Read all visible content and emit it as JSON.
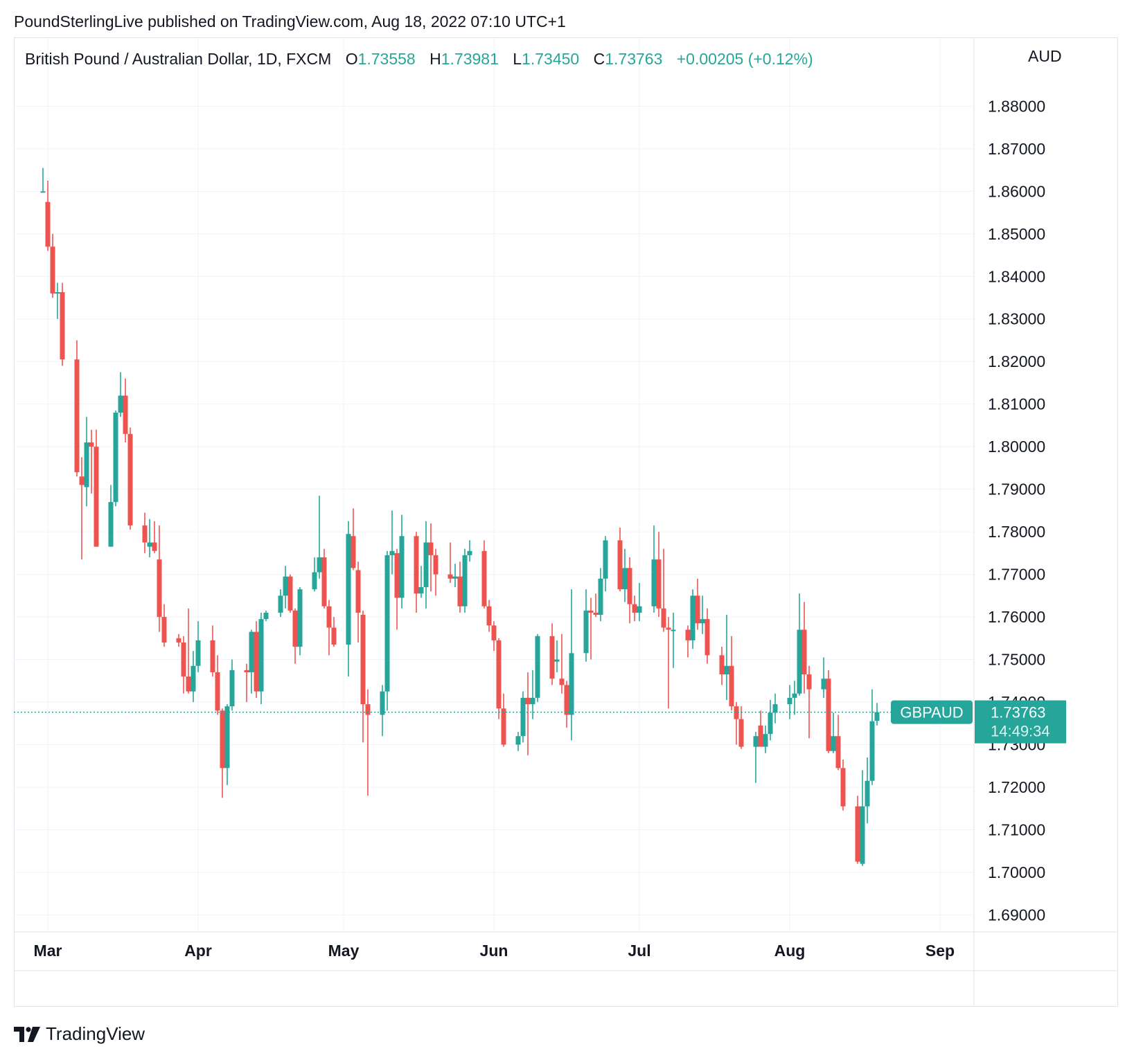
{
  "header": {
    "published": "PoundSterlingLive published on TradingView.com, Aug 18, 2022 07:10 UTC+1"
  },
  "legend": {
    "symbol": "British Pound / Australian Dollar, 1D, FXCM",
    "o_label": "O",
    "o_value": "1.73558",
    "h_label": "H",
    "h_value": "1.73981",
    "l_label": "L",
    "l_value": "1.73450",
    "c_label": "C",
    "c_value": "1.73763",
    "change": "+0.00205 (+0.12%)"
  },
  "axis": {
    "currency": "AUD"
  },
  "price_tag": {
    "symbol": "GBPAUD",
    "price": "1.73763",
    "countdown": "14:49:34"
  },
  "footer": {
    "brand": "TradingView"
  },
  "colors": {
    "up": "#26a69a",
    "down": "#ef5350",
    "grid": "#f0f3fa",
    "axis_text": "#131722"
  },
  "chart_data": {
    "type": "candlestick",
    "y_ticks": [
      "1.88000",
      "1.87000",
      "1.86000",
      "1.85000",
      "1.84000",
      "1.83000",
      "1.82000",
      "1.81000",
      "1.80000",
      "1.79000",
      "1.78000",
      "1.77000",
      "1.76000",
      "1.75000",
      "1.74000",
      "1.73000",
      "1.72000",
      "1.71000",
      "1.70000",
      "1.69000"
    ],
    "ylim": [
      1.686,
      1.896
    ],
    "x_ticks": [
      {
        "label": "Mar",
        "date": "2022-03-01"
      },
      {
        "label": "Apr",
        "date": "2022-04-01"
      },
      {
        "label": "May",
        "date": "2022-05-01"
      },
      {
        "label": "Jun",
        "date": "2022-06-01"
      },
      {
        "label": "Jul",
        "date": "2022-07-01"
      },
      {
        "label": "Aug",
        "date": "2022-08-01"
      },
      {
        "label": "Sep",
        "date": "2022-09-01"
      }
    ],
    "last_price": 1.73763,
    "candles": [
      {
        "d": "2022-02-28",
        "o": 1.86,
        "h": 1.8655,
        "l": 1.86,
        "c": 1.86
      },
      {
        "d": "2022-03-01",
        "o": 1.8575,
        "h": 1.8625,
        "l": 1.846,
        "c": 1.847
      },
      {
        "d": "2022-03-02",
        "o": 1.847,
        "h": 1.85,
        "l": 1.835,
        "c": 1.836
      },
      {
        "d": "2022-03-03",
        "o": 1.836,
        "h": 1.8385,
        "l": 1.83,
        "c": 1.8363
      },
      {
        "d": "2022-03-04",
        "o": 1.8363,
        "h": 1.8385,
        "l": 1.819,
        "c": 1.8205
      },
      {
        "d": "2022-03-07",
        "o": 1.8205,
        "h": 1.825,
        "l": 1.793,
        "c": 1.794
      },
      {
        "d": "2022-03-08",
        "o": 1.793,
        "h": 1.7975,
        "l": 1.7735,
        "c": 1.791
      },
      {
        "d": "2022-03-09",
        "o": 1.7905,
        "h": 1.807,
        "l": 1.786,
        "c": 1.801
      },
      {
        "d": "2022-03-10",
        "o": 1.801,
        "h": 1.804,
        "l": 1.789,
        "c": 1.8
      },
      {
        "d": "2022-03-11",
        "o": 1.8,
        "h": 1.804,
        "l": 1.7765,
        "c": 1.7765
      },
      {
        "d": "2022-03-14",
        "o": 1.7765,
        "h": 1.791,
        "l": 1.7765,
        "c": 1.787
      },
      {
        "d": "2022-03-15",
        "o": 1.787,
        "h": 1.8085,
        "l": 1.786,
        "c": 1.808
      },
      {
        "d": "2022-03-16",
        "o": 1.808,
        "h": 1.8175,
        "l": 1.807,
        "c": 1.812
      },
      {
        "d": "2022-03-17",
        "o": 1.812,
        "h": 1.816,
        "l": 1.801,
        "c": 1.803
      },
      {
        "d": "2022-03-18",
        "o": 1.803,
        "h": 1.8045,
        "l": 1.7805,
        "c": 1.7815
      },
      {
        "d": "2022-03-21",
        "o": 1.7815,
        "h": 1.7845,
        "l": 1.775,
        "c": 1.7775
      },
      {
        "d": "2022-03-22",
        "o": 1.7765,
        "h": 1.783,
        "l": 1.774,
        "c": 1.7775
      },
      {
        "d": "2022-03-23",
        "o": 1.7775,
        "h": 1.7825,
        "l": 1.775,
        "c": 1.7755
      },
      {
        "d": "2022-03-24",
        "o": 1.7735,
        "h": 1.7815,
        "l": 1.7565,
        "c": 1.76
      },
      {
        "d": "2022-03-25",
        "o": 1.76,
        "h": 1.763,
        "l": 1.753,
        "c": 1.754
      },
      {
        "d": "2022-03-28",
        "o": 1.755,
        "h": 1.756,
        "l": 1.753,
        "c": 1.754
      },
      {
        "d": "2022-03-29",
        "o": 1.754,
        "h": 1.7555,
        "l": 1.742,
        "c": 1.746
      },
      {
        "d": "2022-03-30",
        "o": 1.746,
        "h": 1.762,
        "l": 1.742,
        "c": 1.7425
      },
      {
        "d": "2022-03-31",
        "o": 1.7425,
        "h": 1.752,
        "l": 1.74,
        "c": 1.7485
      },
      {
        "d": "2022-04-01",
        "o": 1.7485,
        "h": 1.759,
        "l": 1.747,
        "c": 1.7545
      },
      {
        "d": "2022-04-04",
        "o": 1.7545,
        "h": 1.758,
        "l": 1.746,
        "c": 1.747
      },
      {
        "d": "2022-04-05",
        "o": 1.747,
        "h": 1.751,
        "l": 1.737,
        "c": 1.738
      },
      {
        "d": "2022-04-06",
        "o": 1.738,
        "h": 1.7385,
        "l": 1.7175,
        "c": 1.7245
      },
      {
        "d": "2022-04-07",
        "o": 1.7245,
        "h": 1.7395,
        "l": 1.7205,
        "c": 1.739
      },
      {
        "d": "2022-04-08",
        "o": 1.739,
        "h": 1.75,
        "l": 1.738,
        "c": 1.7475
      },
      {
        "d": "2022-04-11",
        "o": 1.7475,
        "h": 1.749,
        "l": 1.74,
        "c": 1.747
      },
      {
        "d": "2022-04-12",
        "o": 1.747,
        "h": 1.757,
        "l": 1.742,
        "c": 1.7565
      },
      {
        "d": "2022-04-13",
        "o": 1.7565,
        "h": 1.759,
        "l": 1.741,
        "c": 1.7425
      },
      {
        "d": "2022-04-14",
        "o": 1.7425,
        "h": 1.761,
        "l": 1.7395,
        "c": 1.7595
      },
      {
        "d": "2022-04-15",
        "o": 1.7595,
        "h": 1.7615,
        "l": 1.759,
        "c": 1.761
      },
      {
        "d": "2022-04-18",
        "o": 1.761,
        "h": 1.7665,
        "l": 1.76,
        "c": 1.765
      },
      {
        "d": "2022-04-19",
        "o": 1.765,
        "h": 1.772,
        "l": 1.762,
        "c": 1.7695
      },
      {
        "d": "2022-04-20",
        "o": 1.7695,
        "h": 1.77,
        "l": 1.761,
        "c": 1.7615
      },
      {
        "d": "2022-04-21",
        "o": 1.7615,
        "h": 1.762,
        "l": 1.749,
        "c": 1.753
      },
      {
        "d": "2022-04-22",
        "o": 1.753,
        "h": 1.767,
        "l": 1.751,
        "c": 1.7665
      },
      {
        "d": "2022-04-25",
        "o": 1.7665,
        "h": 1.774,
        "l": 1.766,
        "c": 1.7705
      },
      {
        "d": "2022-04-26",
        "o": 1.7705,
        "h": 1.7885,
        "l": 1.769,
        "c": 1.774
      },
      {
        "d": "2022-04-27",
        "o": 1.774,
        "h": 1.776,
        "l": 1.762,
        "c": 1.7625
      },
      {
        "d": "2022-04-28",
        "o": 1.7625,
        "h": 1.764,
        "l": 1.751,
        "c": 1.7575
      },
      {
        "d": "2022-04-29",
        "o": 1.7575,
        "h": 1.76,
        "l": 1.753,
        "c": 1.7535
      },
      {
        "d": "2022-05-02",
        "o": 1.7535,
        "h": 1.7825,
        "l": 1.746,
        "c": 1.7795
      },
      {
        "d": "2022-05-03",
        "o": 1.779,
        "h": 1.7855,
        "l": 1.771,
        "c": 1.7715
      },
      {
        "d": "2022-05-04",
        "o": 1.771,
        "h": 1.773,
        "l": 1.754,
        "c": 1.761
      },
      {
        "d": "2022-05-05",
        "o": 1.7605,
        "h": 1.7615,
        "l": 1.7305,
        "c": 1.7395
      },
      {
        "d": "2022-05-06",
        "o": 1.7395,
        "h": 1.743,
        "l": 1.718,
        "c": 1.737
      },
      {
        "d": "2022-05-09",
        "o": 1.737,
        "h": 1.744,
        "l": 1.732,
        "c": 1.7425
      },
      {
        "d": "2022-05-10",
        "o": 1.7425,
        "h": 1.7755,
        "l": 1.738,
        "c": 1.7745
      },
      {
        "d": "2022-05-11",
        "o": 1.7745,
        "h": 1.785,
        "l": 1.77,
        "c": 1.7755
      },
      {
        "d": "2022-05-12",
        "o": 1.775,
        "h": 1.776,
        "l": 1.757,
        "c": 1.7645
      },
      {
        "d": "2022-05-13",
        "o": 1.7645,
        "h": 1.784,
        "l": 1.762,
        "c": 1.779
      },
      {
        "d": "2022-05-16",
        "o": 1.779,
        "h": 1.78,
        "l": 1.761,
        "c": 1.7655
      },
      {
        "d": "2022-05-17",
        "o": 1.7655,
        "h": 1.772,
        "l": 1.7645,
        "c": 1.767
      },
      {
        "d": "2022-05-18",
        "o": 1.767,
        "h": 1.7825,
        "l": 1.762,
        "c": 1.7775
      },
      {
        "d": "2022-05-19",
        "o": 1.7775,
        "h": 1.782,
        "l": 1.766,
        "c": 1.7745
      },
      {
        "d": "2022-05-20",
        "o": 1.7745,
        "h": 1.776,
        "l": 1.765,
        "c": 1.77
      },
      {
        "d": "2022-05-23",
        "o": 1.77,
        "h": 1.7775,
        "l": 1.768,
        "c": 1.769
      },
      {
        "d": "2022-05-24",
        "o": 1.769,
        "h": 1.7725,
        "l": 1.767,
        "c": 1.7695
      },
      {
        "d": "2022-05-25",
        "o": 1.7695,
        "h": 1.773,
        "l": 1.761,
        "c": 1.7625
      },
      {
        "d": "2022-05-26",
        "o": 1.7625,
        "h": 1.776,
        "l": 1.761,
        "c": 1.7745
      },
      {
        "d": "2022-05-27",
        "o": 1.7745,
        "h": 1.778,
        "l": 1.773,
        "c": 1.7755
      },
      {
        "d": "2022-05-30",
        "o": 1.7755,
        "h": 1.778,
        "l": 1.762,
        "c": 1.7625
      },
      {
        "d": "2022-05-31",
        "o": 1.7625,
        "h": 1.764,
        "l": 1.7565,
        "c": 1.758
      },
      {
        "d": "2022-06-01",
        "o": 1.758,
        "h": 1.759,
        "l": 1.752,
        "c": 1.7545
      },
      {
        "d": "2022-06-02",
        "o": 1.7545,
        "h": 1.755,
        "l": 1.736,
        "c": 1.7385
      },
      {
        "d": "2022-06-03",
        "o": 1.7385,
        "h": 1.742,
        "l": 1.7295,
        "c": 1.73
      },
      {
        "d": "2022-06-06",
        "o": 1.73,
        "h": 1.733,
        "l": 1.7285,
        "c": 1.732
      },
      {
        "d": "2022-06-07",
        "o": 1.732,
        "h": 1.7425,
        "l": 1.7305,
        "c": 1.741
      },
      {
        "d": "2022-06-08",
        "o": 1.741,
        "h": 1.747,
        "l": 1.7275,
        "c": 1.7395
      },
      {
        "d": "2022-06-09",
        "o": 1.7395,
        "h": 1.7475,
        "l": 1.736,
        "c": 1.741
      },
      {
        "d": "2022-06-10",
        "o": 1.741,
        "h": 1.756,
        "l": 1.74,
        "c": 1.7555
      },
      {
        "d": "2022-06-13",
        "o": 1.7555,
        "h": 1.7585,
        "l": 1.744,
        "c": 1.7455
      },
      {
        "d": "2022-06-14",
        "o": 1.7495,
        "h": 1.7545,
        "l": 1.747,
        "c": 1.75
      },
      {
        "d": "2022-06-15",
        "o": 1.7455,
        "h": 1.756,
        "l": 1.742,
        "c": 1.744
      },
      {
        "d": "2022-06-16",
        "o": 1.744,
        "h": 1.745,
        "l": 1.734,
        "c": 1.737
      },
      {
        "d": "2022-06-17",
        "o": 1.737,
        "h": 1.7665,
        "l": 1.731,
        "c": 1.7515
      },
      {
        "d": "2022-06-20",
        "o": 1.7515,
        "h": 1.7665,
        "l": 1.7495,
        "c": 1.7615
      },
      {
        "d": "2022-06-21",
        "o": 1.7615,
        "h": 1.7645,
        "l": 1.75,
        "c": 1.761
      },
      {
        "d": "2022-06-22",
        "o": 1.761,
        "h": 1.7655,
        "l": 1.76,
        "c": 1.7605
      },
      {
        "d": "2022-06-23",
        "o": 1.7605,
        "h": 1.7715,
        "l": 1.759,
        "c": 1.769
      },
      {
        "d": "2022-06-24",
        "o": 1.769,
        "h": 1.779,
        "l": 1.766,
        "c": 1.778
      },
      {
        "d": "2022-06-27",
        "o": 1.778,
        "h": 1.781,
        "l": 1.766,
        "c": 1.7665
      },
      {
        "d": "2022-06-28",
        "o": 1.7665,
        "h": 1.776,
        "l": 1.7635,
        "c": 1.7715
      },
      {
        "d": "2022-06-29",
        "o": 1.7715,
        "h": 1.774,
        "l": 1.7585,
        "c": 1.763
      },
      {
        "d": "2022-06-30",
        "o": 1.763,
        "h": 1.765,
        "l": 1.759,
        "c": 1.761
      },
      {
        "d": "2022-07-01",
        "o": 1.761,
        "h": 1.768,
        "l": 1.759,
        "c": 1.7625
      },
      {
        "d": "2022-07-04",
        "o": 1.7625,
        "h": 1.7815,
        "l": 1.761,
        "c": 1.7735
      },
      {
        "d": "2022-07-05",
        "o": 1.7735,
        "h": 1.78,
        "l": 1.76,
        "c": 1.762
      },
      {
        "d": "2022-07-06",
        "o": 1.762,
        "h": 1.776,
        "l": 1.7565,
        "c": 1.7575
      },
      {
        "d": "2022-07-07",
        "o": 1.7575,
        "h": 1.76,
        "l": 1.7385,
        "c": 1.757
      },
      {
        "d": "2022-07-08",
        "o": 1.757,
        "h": 1.761,
        "l": 1.748,
        "c": 1.757
      },
      {
        "d": "2022-07-11",
        "o": 1.757,
        "h": 1.758,
        "l": 1.7505,
        "c": 1.7545
      },
      {
        "d": "2022-07-12",
        "o": 1.7545,
        "h": 1.7665,
        "l": 1.7525,
        "c": 1.765
      },
      {
        "d": "2022-07-13",
        "o": 1.765,
        "h": 1.769,
        "l": 1.757,
        "c": 1.7585
      },
      {
        "d": "2022-07-14",
        "o": 1.7585,
        "h": 1.765,
        "l": 1.756,
        "c": 1.7595
      },
      {
        "d": "2022-07-15",
        "o": 1.7595,
        "h": 1.762,
        "l": 1.749,
        "c": 1.751
      },
      {
        "d": "2022-07-18",
        "o": 1.751,
        "h": 1.753,
        "l": 1.744,
        "c": 1.7465
      },
      {
        "d": "2022-07-19",
        "o": 1.7465,
        "h": 1.7605,
        "l": 1.7405,
        "c": 1.7485
      },
      {
        "d": "2022-07-20",
        "o": 1.7485,
        "h": 1.7555,
        "l": 1.738,
        "c": 1.739
      },
      {
        "d": "2022-07-21",
        "o": 1.739,
        "h": 1.74,
        "l": 1.73,
        "c": 1.736
      },
      {
        "d": "2022-07-22",
        "o": 1.736,
        "h": 1.739,
        "l": 1.729,
        "c": 1.7295
      },
      {
        "d": "2022-07-25",
        "o": 1.7295,
        "h": 1.733,
        "l": 1.721,
        "c": 1.732
      },
      {
        "d": "2022-07-26",
        "o": 1.7345,
        "h": 1.738,
        "l": 1.7295,
        "c": 1.7295
      },
      {
        "d": "2022-07-27",
        "o": 1.7295,
        "h": 1.7345,
        "l": 1.728,
        "c": 1.7325
      },
      {
        "d": "2022-07-28",
        "o": 1.7325,
        "h": 1.7405,
        "l": 1.731,
        "c": 1.7375
      },
      {
        "d": "2022-07-29",
        "o": 1.7375,
        "h": 1.742,
        "l": 1.735,
        "c": 1.7395
      },
      {
        "d": "2022-08-01",
        "o": 1.7395,
        "h": 1.744,
        "l": 1.736,
        "c": 1.741
      },
      {
        "d": "2022-08-02",
        "o": 1.741,
        "h": 1.745,
        "l": 1.737,
        "c": 1.742
      },
      {
        "d": "2022-08-03",
        "o": 1.742,
        "h": 1.7655,
        "l": 1.7415,
        "c": 1.757
      },
      {
        "d": "2022-08-04",
        "o": 1.757,
        "h": 1.7635,
        "l": 1.742,
        "c": 1.7465
      },
      {
        "d": "2022-08-05",
        "o": 1.7465,
        "h": 1.7485,
        "l": 1.7315,
        "c": 1.743
      },
      {
        "d": "2022-08-08",
        "o": 1.743,
        "h": 1.7505,
        "l": 1.741,
        "c": 1.7455
      },
      {
        "d": "2022-08-09",
        "o": 1.7455,
        "h": 1.7475,
        "l": 1.728,
        "c": 1.7285
      },
      {
        "d": "2022-08-10",
        "o": 1.7285,
        "h": 1.7375,
        "l": 1.728,
        "c": 1.732
      },
      {
        "d": "2022-08-11",
        "o": 1.732,
        "h": 1.737,
        "l": 1.724,
        "c": 1.7245
      },
      {
        "d": "2022-08-12",
        "o": 1.7245,
        "h": 1.7265,
        "l": 1.7145,
        "c": 1.7155
      },
      {
        "d": "2022-08-15",
        "o": 1.7155,
        "h": 1.718,
        "l": 1.702,
        "c": 1.7025
      },
      {
        "d": "2022-08-16",
        "o": 1.702,
        "h": 1.724,
        "l": 1.7015,
        "c": 1.7155
      },
      {
        "d": "2022-08-17",
        "o": 1.7155,
        "h": 1.727,
        "l": 1.7115,
        "c": 1.7215
      },
      {
        "d": "2022-08-18",
        "o": 1.7215,
        "h": 1.743,
        "l": 1.7205,
        "c": 1.7355
      },
      {
        "d": "2022-08-19",
        "o": 1.73558,
        "h": 1.73981,
        "l": 1.7345,
        "c": 1.73763
      }
    ]
  }
}
